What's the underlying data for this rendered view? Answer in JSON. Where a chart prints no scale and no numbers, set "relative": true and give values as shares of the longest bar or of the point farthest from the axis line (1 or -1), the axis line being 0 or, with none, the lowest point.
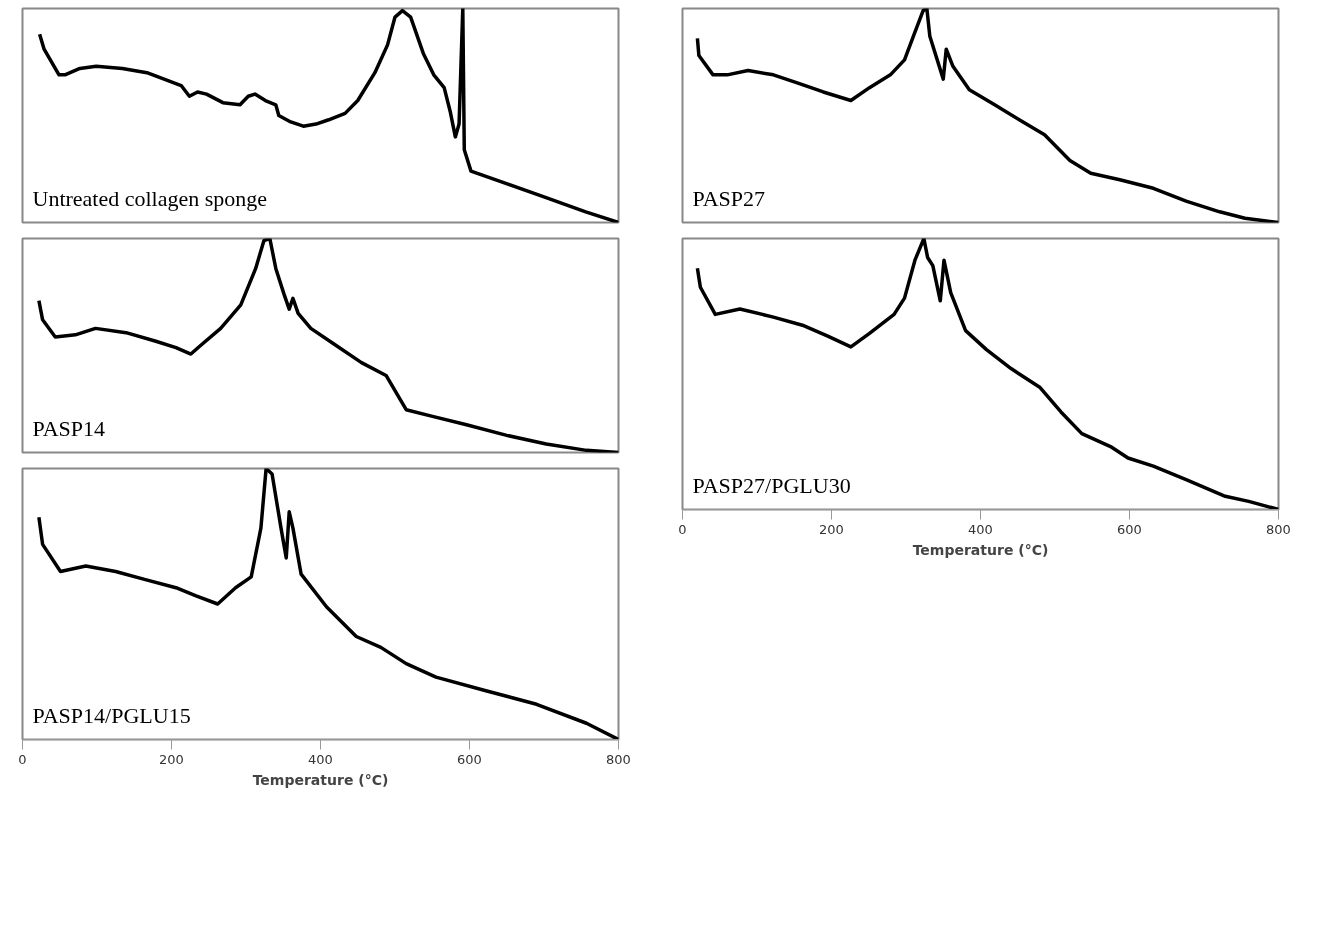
{
  "chart_data": [
    {
      "type": "line",
      "title": "Untreated collagen sponge",
      "relative": true,
      "color": "#000000",
      "xlim": [
        0,
        800
      ],
      "xticks": [
        0,
        200,
        400,
        600,
        800
      ],
      "tick_labels": false,
      "x": [
        23,
        29,
        49,
        57,
        77,
        99,
        134,
        167,
        190,
        213,
        224,
        235,
        247,
        269,
        292,
        303,
        312,
        326,
        340,
        344,
        360,
        377,
        394,
        411,
        433,
        450,
        473,
        490,
        500,
        510,
        521,
        538,
        552,
        566,
        574,
        581,
        586,
        591,
        593,
        602,
        643,
        700,
        756,
        800
      ],
      "values": [
        0.88,
        0.81,
        0.69,
        0.69,
        0.72,
        0.73,
        0.72,
        0.7,
        0.67,
        0.64,
        0.59,
        0.61,
        0.6,
        0.56,
        0.55,
        0.59,
        0.6,
        0.57,
        0.55,
        0.5,
        0.47,
        0.45,
        0.46,
        0.48,
        0.51,
        0.57,
        0.7,
        0.83,
        0.96,
        0.99,
        0.96,
        0.79,
        0.69,
        0.63,
        0.52,
        0.4,
        0.46,
        1.0,
        0.34,
        0.24,
        0.19,
        0.12,
        0.05,
        0.0
      ]
    },
    {
      "type": "line",
      "title": "PASP14",
      "relative": true,
      "color": "#000000",
      "xlim": [
        0,
        800
      ],
      "xticks": [
        0,
        200,
        400,
        600,
        800
      ],
      "tick_labels": false,
      "x": [
        22,
        27,
        44,
        71,
        98,
        139,
        179,
        206,
        226,
        239,
        266,
        293,
        313,
        324,
        332,
        340,
        351,
        358,
        363,
        370,
        387,
        421,
        455,
        488,
        515,
        549,
        596,
        650,
        703,
        757,
        800
      ],
      "values": [
        0.71,
        0.62,
        0.54,
        0.55,
        0.58,
        0.56,
        0.52,
        0.49,
        0.46,
        0.5,
        0.58,
        0.69,
        0.86,
        0.99,
        1.0,
        0.86,
        0.74,
        0.67,
        0.72,
        0.65,
        0.58,
        0.5,
        0.42,
        0.36,
        0.2,
        0.17,
        0.13,
        0.08,
        0.04,
        0.01,
        0.0
      ]
    },
    {
      "type": "line",
      "title": "PASP14/PGLU15",
      "relative": true,
      "color": "#000000",
      "xlim": [
        0,
        800
      ],
      "xticks": [
        0,
        200,
        400,
        600,
        800
      ],
      "tick_labels": "x",
      "xlabel": "Temperature (°C)",
      "x": [
        22,
        27,
        51,
        85,
        125,
        165,
        206,
        233,
        262,
        286,
        307,
        320,
        327,
        335,
        347,
        354,
        358,
        363,
        374,
        408,
        448,
        481,
        515,
        555,
        622,
        690,
        757,
        800
      ],
      "values": [
        0.82,
        0.72,
        0.62,
        0.64,
        0.62,
        0.59,
        0.56,
        0.53,
        0.5,
        0.56,
        0.6,
        0.78,
        1.0,
        0.98,
        0.78,
        0.67,
        0.84,
        0.78,
        0.61,
        0.49,
        0.38,
        0.34,
        0.28,
        0.23,
        0.18,
        0.13,
        0.06,
        0.0
      ]
    },
    {
      "type": "line",
      "title": "PASP27",
      "relative": true,
      "color": "#000000",
      "xlim": [
        0,
        800
      ],
      "xticks": [
        0,
        200,
        400,
        600,
        800
      ],
      "tick_labels": false,
      "x": [
        20,
        22,
        41,
        60,
        88,
        122,
        156,
        189,
        226,
        251,
        279,
        298,
        312,
        323,
        328,
        332,
        350,
        354,
        363,
        385,
        419,
        452,
        486,
        520,
        548,
        587,
        632,
        676,
        721,
        755,
        800
      ],
      "values": [
        0.86,
        0.78,
        0.69,
        0.69,
        0.71,
        0.69,
        0.65,
        0.61,
        0.57,
        0.63,
        0.69,
        0.76,
        0.89,
        0.99,
        1.0,
        0.87,
        0.67,
        0.81,
        0.73,
        0.62,
        0.55,
        0.48,
        0.41,
        0.29,
        0.23,
        0.2,
        0.16,
        0.1,
        0.05,
        0.02,
        0.0
      ]
    },
    {
      "type": "line",
      "title": "PASP27/PGLU30",
      "relative": true,
      "color": "#000000",
      "xlim": [
        0,
        800
      ],
      "xticks": [
        0,
        200,
        400,
        600,
        800
      ],
      "tick_labels": "x",
      "xlabel": "Temperature (°C)",
      "x": [
        20,
        24,
        44,
        77,
        122,
        161,
        195,
        226,
        251,
        284,
        298,
        312,
        324,
        329,
        336,
        346,
        351,
        360,
        380,
        408,
        441,
        480,
        508,
        536,
        576,
        598,
        632,
        676,
        727,
        760,
        800
      ],
      "values": [
        0.89,
        0.82,
        0.72,
        0.74,
        0.71,
        0.68,
        0.64,
        0.6,
        0.65,
        0.72,
        0.78,
        0.92,
        1.0,
        0.93,
        0.9,
        0.77,
        0.92,
        0.8,
        0.66,
        0.59,
        0.52,
        0.45,
        0.36,
        0.28,
        0.23,
        0.19,
        0.16,
        0.11,
        0.05,
        0.03,
        0.0
      ]
    }
  ]
}
